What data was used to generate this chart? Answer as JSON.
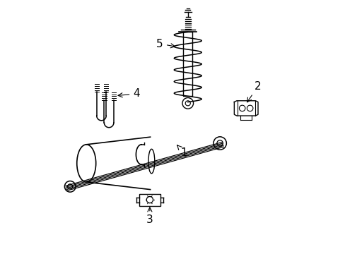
{
  "bg_color": "#ffffff",
  "line_color": "#000000",
  "fig_width": 4.89,
  "fig_height": 3.6,
  "dpi": 100,
  "label_fontsize": 11
}
